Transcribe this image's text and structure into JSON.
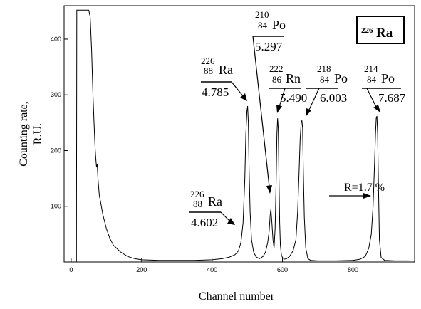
{
  "chart_data": {
    "type": "line",
    "title": "226Ra",
    "title_parts": {
      "mass": "226",
      "element": "Ra"
    },
    "xlabel": "Channel number",
    "ylabel_lines": [
      "Counting rate,",
      "R.U."
    ],
    "xlim": [
      -20,
      975
    ],
    "ylim": [
      0,
      460
    ],
    "x_ticks": [
      0,
      200,
      400,
      600,
      800
    ],
    "y_ticks": [
      100,
      200,
      300,
      400
    ],
    "grid": false,
    "line_color": "#000000",
    "series": [
      {
        "x": [
          0,
          15,
          16,
          20,
          30,
          40,
          50,
          54,
          58,
          62,
          65,
          68,
          70,
          72,
          74,
          76,
          80,
          90,
          100,
          110,
          120,
          140,
          160,
          180,
          200,
          250,
          300,
          350,
          400,
          430,
          450,
          465,
          475,
          482,
          488,
          493,
          496,
          499,
          501,
          503,
          505,
          508,
          512,
          518,
          525,
          535,
          545,
          552,
          558,
          562,
          565,
          567,
          570,
          573,
          576,
          579,
          582,
          584,
          586,
          588,
          590,
          592,
          594,
          597,
          600,
          605,
          612,
          620,
          630,
          638,
          643,
          647,
          650,
          653,
          655,
          657,
          659,
          662,
          666,
          672,
          680,
          700,
          750,
          800,
          820,
          835,
          845,
          852,
          857,
          861,
          864,
          866,
          868,
          870,
          872,
          875,
          880,
          890,
          920,
          960
        ],
        "y": [
          0,
          0,
          452,
          452,
          452,
          452,
          452,
          440,
          380,
          300,
          250,
          205,
          185,
          170,
          175,
          150,
          120,
          85,
          60,
          42,
          30,
          18,
          10,
          6,
          4,
          3,
          3,
          3,
          4,
          6,
          9,
          13,
          20,
          35,
          70,
          150,
          230,
          270,
          280,
          250,
          170,
          90,
          40,
          18,
          9,
          6,
          10,
          18,
          35,
          55,
          85,
          95,
          70,
          40,
          25,
          60,
          150,
          230,
          258,
          240,
          150,
          70,
          30,
          12,
          8,
          5,
          6,
          10,
          20,
          40,
          90,
          160,
          220,
          250,
          254,
          240,
          170,
          80,
          25,
          6,
          3,
          2,
          2,
          3,
          5,
          10,
          25,
          50,
          100,
          170,
          230,
          258,
          262,
          230,
          150,
          40,
          8,
          3,
          2,
          2
        ]
      }
    ],
    "annotations": [
      {
        "mass": "226",
        "z": "88",
        "element": "Ra",
        "energy": "4.785"
      },
      {
        "mass": "226",
        "z": "88",
        "element": "Ra",
        "energy": "4.602"
      },
      {
        "mass": "210",
        "z": "84",
        "element": "Po",
        "energy": "5.297"
      },
      {
        "mass": "222",
        "z": "86",
        "element": "Rn",
        "energy": "5.490"
      },
      {
        "mass": "218",
        "z": "84",
        "element": "Po",
        "energy": "6.003"
      },
      {
        "mass": "214",
        "z": "84",
        "element": "Po",
        "energy": "7.687"
      }
    ],
    "resolution_label": "R=1.7 %"
  }
}
